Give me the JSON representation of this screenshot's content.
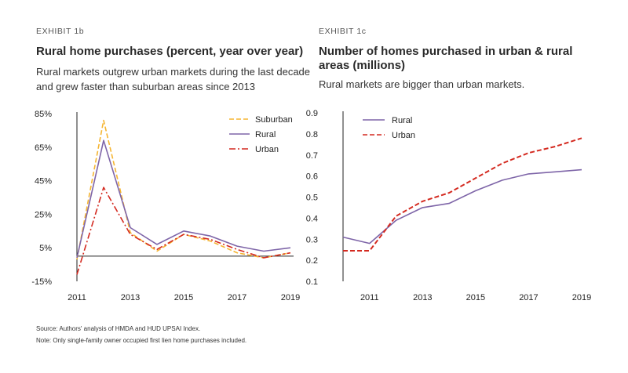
{
  "colors": {
    "rural": "#7e65a8",
    "urban": "#d42a20",
    "suburban": "#f5b532",
    "axis": "#222222"
  },
  "left": {
    "exhibit": "EXHIBIT 1b",
    "title": "Rural home purchases (percent, year over year)",
    "subtitle": "Rural markets outgrew urban markets during the last decade and grew faster than suburban areas since 2013"
  },
  "right": {
    "exhibit": "EXHIBIT 1c",
    "title": "Number of homes purchased in urban & rural areas (millions)",
    "subtitle": "Rural markets are bigger than urban markets."
  },
  "footnotes": {
    "source": "Source: Authors' analysis of HMDA and HUD UPSAI Index.",
    "note": "Note: Only single-family owner occupied first lien home purchases included."
  },
  "chart_data": [
    {
      "type": "line",
      "title": "Rural home purchases (percent, year over year)",
      "x": [
        2011,
        2012,
        2013,
        2014,
        2015,
        2016,
        2017,
        2018,
        2019
      ],
      "x_ticks": [
        "2011",
        "2013",
        "2015",
        "2017",
        "2019"
      ],
      "x_tick_values": [
        2011,
        2013,
        2015,
        2017,
        2019
      ],
      "y_ticks": [
        "85%",
        "65%",
        "45%",
        "25%",
        "5%",
        "-15%"
      ],
      "y_tick_values": [
        85,
        65,
        45,
        25,
        5,
        -15
      ],
      "ylim": [
        -15,
        85
      ],
      "xlim": [
        2011,
        2019
      ],
      "zero_line": 0,
      "legend_position": "top-right",
      "series": [
        {
          "name": "Suburban",
          "key": "suburban",
          "style": "dashed",
          "values": [
            -2,
            81,
            14,
            3,
            13,
            9,
            2,
            -1,
            2
          ]
        },
        {
          "name": "Rural",
          "key": "rural",
          "style": "solid",
          "values": [
            -1,
            69,
            17,
            7,
            15,
            12,
            6,
            3,
            5
          ]
        },
        {
          "name": "Urban",
          "key": "urban",
          "style": "dashdot",
          "values": [
            -11,
            41,
            13,
            4,
            13,
            10,
            4,
            -1,
            2
          ]
        }
      ]
    },
    {
      "type": "line",
      "title": "Number of homes purchased in urban & rural areas (millions)",
      "x": [
        2010,
        2011,
        2012,
        2013,
        2014,
        2015,
        2016,
        2017,
        2018,
        2019
      ],
      "x_ticks": [
        "2011",
        "2013",
        "2015",
        "2017",
        "2019"
      ],
      "x_tick_values": [
        2011,
        2013,
        2015,
        2017,
        2019
      ],
      "y_ticks": [
        "0.9",
        "0.8",
        "0.7",
        "0.6",
        "0.5",
        "0.4",
        "0.3",
        "0.2",
        "0.1"
      ],
      "y_tick_values": [
        0.9,
        0.8,
        0.7,
        0.6,
        0.5,
        0.4,
        0.3,
        0.2,
        0.1
      ],
      "ylim": [
        0.1,
        0.9
      ],
      "xlim": [
        2010,
        2019
      ],
      "legend_position": "top-left",
      "series": [
        {
          "name": "Rural",
          "key": "rural",
          "style": "solid",
          "values": [
            0.31,
            0.28,
            0.39,
            0.45,
            0.47,
            0.53,
            0.58,
            0.61,
            0.62,
            0.63
          ]
        },
        {
          "name": "Urban",
          "key": "urban",
          "style": "dashed",
          "values": [
            0.245,
            0.245,
            0.41,
            0.48,
            0.52,
            0.59,
            0.66,
            0.71,
            0.74,
            0.78
          ]
        }
      ]
    }
  ]
}
